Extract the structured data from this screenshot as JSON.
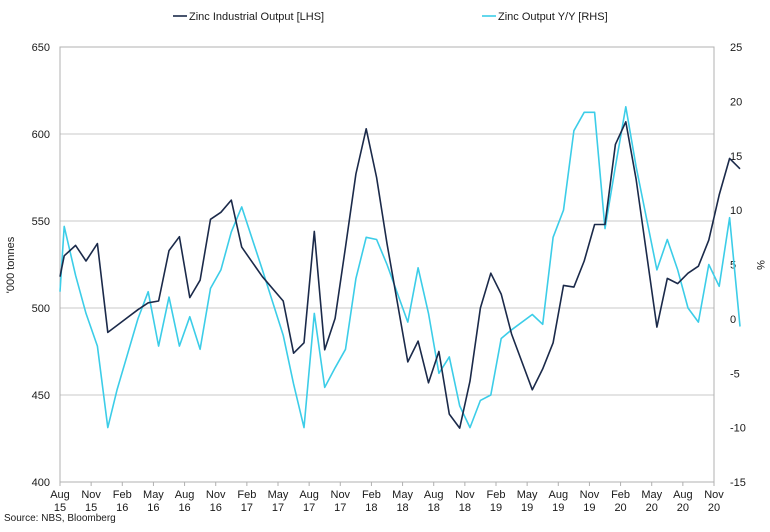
{
  "chart_data": {
    "type": "line",
    "ylabel": "'000 tonnes",
    "y2label": "%",
    "ylim": [
      400,
      650
    ],
    "y2lim": [
      -15,
      25
    ],
    "yticks": [
      400,
      450,
      500,
      550,
      600,
      650
    ],
    "y2ticks": [
      -15,
      -10,
      -5,
      0,
      5,
      10,
      15,
      20,
      25
    ],
    "grid": "horizontal",
    "legend_position": "top",
    "source": "Source: NBS, Bloomberg",
    "x_tick_labels": [
      {
        "m": "Aug",
        "y": "15"
      },
      {
        "m": "Nov",
        "y": "15"
      },
      {
        "m": "Feb",
        "y": "16"
      },
      {
        "m": "May",
        "y": "16"
      },
      {
        "m": "Aug",
        "y": "16"
      },
      {
        "m": "Nov",
        "y": "16"
      },
      {
        "m": "Feb",
        "y": "17"
      },
      {
        "m": "May",
        "y": "17"
      },
      {
        "m": "Aug",
        "y": "17"
      },
      {
        "m": "Nov",
        "y": "17"
      },
      {
        "m": "Feb",
        "y": "18"
      },
      {
        "m": "May",
        "y": "18"
      },
      {
        "m": "Aug",
        "y": "18"
      },
      {
        "m": "Nov",
        "y": "18"
      },
      {
        "m": "Feb",
        "y": "19"
      },
      {
        "m": "May",
        "y": "19"
      },
      {
        "m": "Aug",
        "y": "19"
      },
      {
        "m": "Nov",
        "y": "19"
      },
      {
        "m": "Feb",
        "y": "20"
      },
      {
        "m": "May",
        "y": "20"
      },
      {
        "m": "Aug",
        "y": "20"
      },
      {
        "m": "Nov",
        "y": "20"
      }
    ],
    "series": [
      {
        "name": "Zinc Industrial Output [LHS]",
        "axis": "left",
        "color": "#1b2a4a",
        "points": [
          [
            0,
            518
          ],
          [
            0.4,
            530
          ],
          [
            1.5,
            536
          ],
          [
            2.5,
            527
          ],
          [
            3.6,
            537
          ],
          [
            4.6,
            486
          ],
          [
            5.5,
            490
          ],
          [
            7.5,
            499
          ],
          [
            8.5,
            503
          ],
          [
            9.5,
            504
          ],
          [
            10.5,
            533
          ],
          [
            11.5,
            541
          ],
          [
            12.5,
            506
          ],
          [
            13.5,
            516
          ],
          [
            14.5,
            551
          ],
          [
            15.5,
            555
          ],
          [
            16.5,
            562
          ],
          [
            17.5,
            535
          ],
          [
            19.5,
            518
          ],
          [
            21.5,
            504
          ],
          [
            22.5,
            474
          ],
          [
            23.5,
            480
          ],
          [
            24.5,
            544
          ],
          [
            25.5,
            476
          ],
          [
            26.5,
            494
          ],
          [
            27.5,
            535
          ],
          [
            28.5,
            577
          ],
          [
            29.5,
            603
          ],
          [
            30.5,
            575
          ],
          [
            31.5,
            537
          ],
          [
            33.5,
            469
          ],
          [
            34.5,
            481
          ],
          [
            35.5,
            457
          ],
          [
            36.5,
            475
          ],
          [
            37.5,
            439
          ],
          [
            38.5,
            431
          ],
          [
            39.5,
            458
          ],
          [
            40.5,
            500
          ],
          [
            41.5,
            520
          ],
          [
            42.5,
            508
          ],
          [
            43.5,
            485
          ],
          [
            45.5,
            453
          ],
          [
            46.5,
            465
          ],
          [
            47.5,
            480
          ],
          [
            48.5,
            513
          ],
          [
            49.5,
            512
          ],
          [
            50.5,
            527
          ],
          [
            51.5,
            548
          ],
          [
            52.5,
            548
          ],
          [
            53.5,
            594
          ],
          [
            54.5,
            607
          ],
          [
            55.5,
            574
          ],
          [
            57.5,
            489
          ],
          [
            58.5,
            517
          ],
          [
            59.5,
            514
          ],
          [
            60.5,
            520
          ],
          [
            61.5,
            524
          ],
          [
            62.5,
            539
          ],
          [
            63.5,
            565
          ],
          [
            64.5,
            586
          ],
          [
            65.5,
            580
          ]
        ]
      },
      {
        "name": "Zinc Output Y/Y [RHS]",
        "axis": "right",
        "color": "#3ccde8",
        "points": [
          [
            0,
            2.5
          ],
          [
            0.4,
            8.5
          ],
          [
            1.5,
            4
          ],
          [
            2.5,
            0.5
          ],
          [
            3.6,
            -2.5
          ],
          [
            4.6,
            -10
          ],
          [
            5.5,
            -6.5
          ],
          [
            7.5,
            0
          ],
          [
            8.5,
            2.5
          ],
          [
            9.5,
            -2.5
          ],
          [
            10.5,
            2
          ],
          [
            11.5,
            -2.5
          ],
          [
            12.5,
            0.2
          ],
          [
            13.5,
            -2.8
          ],
          [
            14.5,
            2.8
          ],
          [
            15.5,
            4.5
          ],
          [
            16.5,
            8
          ],
          [
            17.5,
            10.3
          ],
          [
            19.5,
            4.5
          ],
          [
            21.5,
            -1.5
          ],
          [
            22.5,
            -6
          ],
          [
            23.5,
            -10
          ],
          [
            24.5,
            0.5
          ],
          [
            25.5,
            -6.3
          ],
          [
            26.5,
            -4.5
          ],
          [
            27.5,
            -2.8
          ],
          [
            28.5,
            3.7
          ],
          [
            29.5,
            7.5
          ],
          [
            30.5,
            7.3
          ],
          [
            31.5,
            5
          ],
          [
            33.5,
            -0.3
          ],
          [
            34.5,
            4.7
          ],
          [
            35.5,
            0.5
          ],
          [
            36.5,
            -5
          ],
          [
            37.5,
            -3.5
          ],
          [
            38.5,
            -8
          ],
          [
            39.5,
            -10
          ],
          [
            40.5,
            -7.5
          ],
          [
            41.5,
            -7
          ],
          [
            42.5,
            -1.8
          ],
          [
            43.5,
            -1
          ],
          [
            45.5,
            0.4
          ],
          [
            46.5,
            -0.5
          ],
          [
            47.5,
            7.5
          ],
          [
            48.5,
            10
          ],
          [
            49.5,
            17.3
          ],
          [
            50.5,
            19
          ],
          [
            51.5,
            19
          ],
          [
            52.5,
            8.3
          ],
          [
            53.5,
            14
          ],
          [
            54.5,
            19.5
          ],
          [
            55.5,
            14
          ],
          [
            57.5,
            4.5
          ],
          [
            58.5,
            7.3
          ],
          [
            59.5,
            4.5
          ],
          [
            60.5,
            1
          ],
          [
            61.5,
            -0.3
          ],
          [
            62.5,
            5
          ],
          [
            63.5,
            3
          ],
          [
            64.5,
            9.3
          ],
          [
            65.5,
            -0.7
          ]
        ]
      }
    ]
  }
}
